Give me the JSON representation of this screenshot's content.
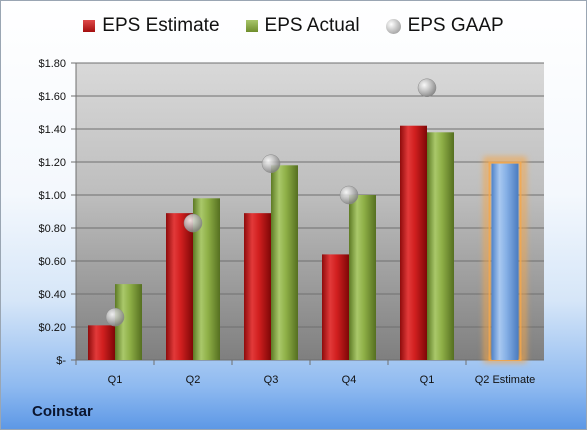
{
  "company": "Coinstar",
  "chart_data": {
    "type": "bar",
    "categories": [
      "Q1",
      "Q2",
      "Q3",
      "Q4",
      "Q1",
      "Q2 Estimate"
    ],
    "series": [
      {
        "name": "EPS Estimate",
        "color": "#c0191c",
        "values": [
          0.21,
          0.89,
          0.89,
          0.64,
          1.42,
          null
        ]
      },
      {
        "name": "EPS Actual",
        "color": "#87a83f",
        "values": [
          0.46,
          0.98,
          1.18,
          1.0,
          1.38,
          null
        ]
      },
      {
        "name": "EPS GAAP",
        "color": "#b4b4b4",
        "marker": "circle",
        "values": [
          0.26,
          0.83,
          1.19,
          1.0,
          1.65,
          null
        ]
      },
      {
        "name": "",
        "color": "#7aa6e0",
        "highlight": "#f5a74a",
        "values": [
          null,
          null,
          null,
          null,
          null,
          1.19
        ]
      }
    ],
    "ylim": [
      0,
      1.8
    ],
    "yticks": [
      0,
      0.2,
      0.4,
      0.6,
      0.8,
      1.0,
      1.2,
      1.4,
      1.6,
      1.8
    ],
    "ytick_labels": [
      "$-",
      "$0.20",
      "$0.40",
      "$0.60",
      "$0.80",
      "$1.00",
      "$1.20",
      "$1.40",
      "$1.60",
      "$1.80"
    ],
    "grid": true,
    "legend": "top",
    "title": "",
    "xlabel": "",
    "ylabel": ""
  }
}
